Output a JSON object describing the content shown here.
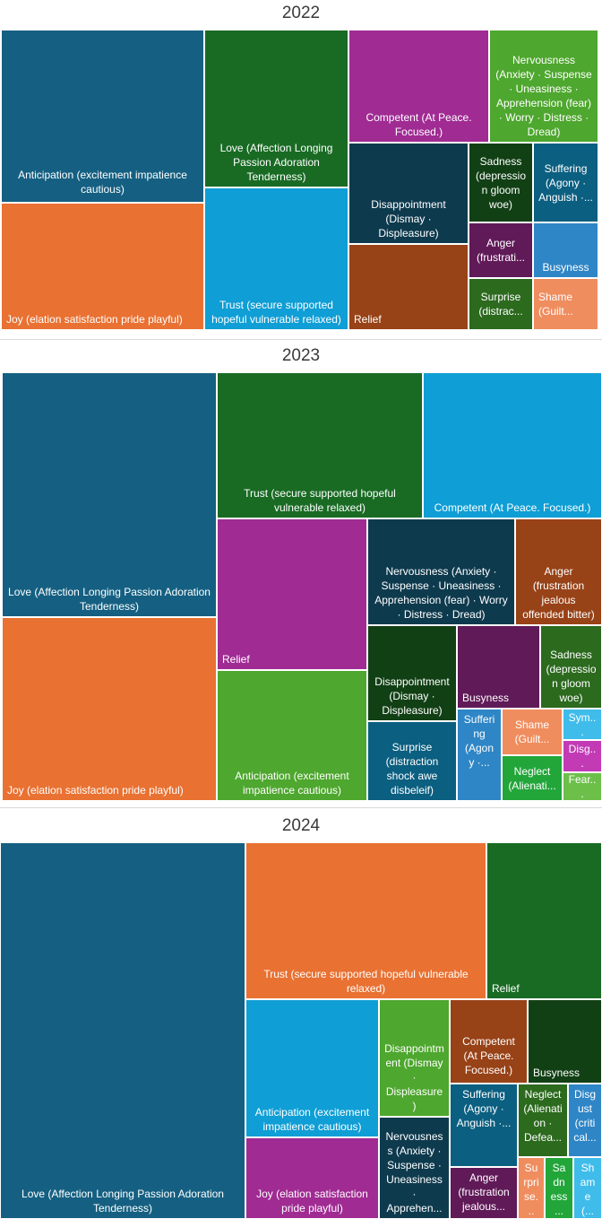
{
  "chart_data": [
    {
      "type": "treemap",
      "title": "2022",
      "items": [
        {
          "label": "Anticipation (excitement impatience cautious)",
          "color": "#156082"
        },
        {
          "label": "Joy (elation satisfaction pride playful)",
          "color": "#E97132"
        },
        {
          "label": "Love (Affection Longing Passion Adoration Tenderness)",
          "color": "#196B24"
        },
        {
          "label": "Trust (secure supported hopeful vulnerable relaxed)",
          "color": "#0F9ED5"
        },
        {
          "label": "Competent (At Peace. Focused.)",
          "color": "#A02B93"
        },
        {
          "label": "Nervousness (Anxiety · Suspense · Uneasiness · Apprehension (fear) · Worry · Distress · Dread)",
          "color": "#4EA72E"
        },
        {
          "label": "Disappointment (Dismay · Displeasure)",
          "color": "#0E3A4E"
        },
        {
          "label": "Relief",
          "color": "#984217"
        },
        {
          "label": "Sadness (depression gloom woe)",
          "color": "#124015"
        },
        {
          "label": "Suffering (Agony · Anguish ·...",
          "color": "#0B5F80"
        },
        {
          "label": "Anger (frustrati...",
          "color": "#601A58"
        },
        {
          "label": "Busyness",
          "color": "#2F86C6"
        },
        {
          "label": "Surprise (distrac...",
          "color": "#2C6A1E"
        },
        {
          "label": "Shame (Guilt...",
          "color": "#F08D5E"
        }
      ]
    },
    {
      "type": "treemap",
      "title": "2023",
      "items": [
        {
          "label": "Love (Affection Longing Passion Adoration Tenderness)",
          "color": "#156082"
        },
        {
          "label": "Joy (elation satisfaction pride playful)",
          "color": "#E97132"
        },
        {
          "label": "Trust (secure supported hopeful vulnerable relaxed)",
          "color": "#196B24"
        },
        {
          "label": "Competent (At Peace. Focused.)",
          "color": "#0F9ED5"
        },
        {
          "label": "Relief",
          "color": "#A02B93"
        },
        {
          "label": "Anticipation (excitement impatience cautious)",
          "color": "#4EA72E"
        },
        {
          "label": "Nervousness (Anxiety · Suspense · Uneasiness · Apprehension (fear) · Worry · Distress · Dread)",
          "color": "#0E3A4E"
        },
        {
          "label": "Anger (frustration jealous offended bitter)",
          "color": "#984217"
        },
        {
          "label": "Disappointment (Dismay · Displeasure)",
          "color": "#124015"
        },
        {
          "label": "Busyness",
          "color": "#601A58"
        },
        {
          "label": "Sadness (depression gloom woe)",
          "color": "#2C6A1E"
        },
        {
          "label": "Surprise (distraction shock awe disbeleif)",
          "color": "#0B5F80"
        },
        {
          "label": "Suffering (Agony ·...",
          "color": "#2F86C6"
        },
        {
          "label": "Shame (Guilt...",
          "color": "#F08D5E"
        },
        {
          "label": "Sym...",
          "color": "#3FBCEA"
        },
        {
          "label": "Neglect (Alienati...",
          "color": "#22A63A"
        },
        {
          "label": "Disg...",
          "color": "#C23BB5"
        },
        {
          "label": "Fear...",
          "color": "#6CC04A"
        }
      ]
    },
    {
      "type": "treemap",
      "title": "2024",
      "items": [
        {
          "label": "Love (Affection Longing Passion Adoration Tenderness)",
          "color": "#156082"
        },
        {
          "label": "Trust (secure supported hopeful vulnerable relaxed)",
          "color": "#E97132"
        },
        {
          "label": "Relief",
          "color": "#196B24"
        },
        {
          "label": "Anticipation (excitement impatience cautious)",
          "color": "#0F9ED5"
        },
        {
          "label": "Joy (elation satisfaction pride playful)",
          "color": "#A02B93"
        },
        {
          "label": "Disappointment (Dismay · Displeasure)",
          "color": "#4EA72E"
        },
        {
          "label": "Competent (At Peace. Focused.)",
          "color": "#984217"
        },
        {
          "label": "Busyness",
          "color": "#124015"
        },
        {
          "label": "Nervousness (Anxiety · Suspense · Uneasiness · Apprehen...",
          "color": "#0E3A4E"
        },
        {
          "label": "Suffering (Agony · Anguish ·...",
          "color": "#0B5F80"
        },
        {
          "label": "Neglect (Alienation · Defea...",
          "color": "#2C6A1E"
        },
        {
          "label": "Disgust (critical...",
          "color": "#2F86C6"
        },
        {
          "label": "Anger (frustration jealous...",
          "color": "#601A58"
        },
        {
          "label": "Surprise...",
          "color": "#F08D5E"
        },
        {
          "label": "Sadness...",
          "color": "#22A63A"
        },
        {
          "label": "Shame (...",
          "color": "#3FBCEA"
        }
      ]
    }
  ]
}
